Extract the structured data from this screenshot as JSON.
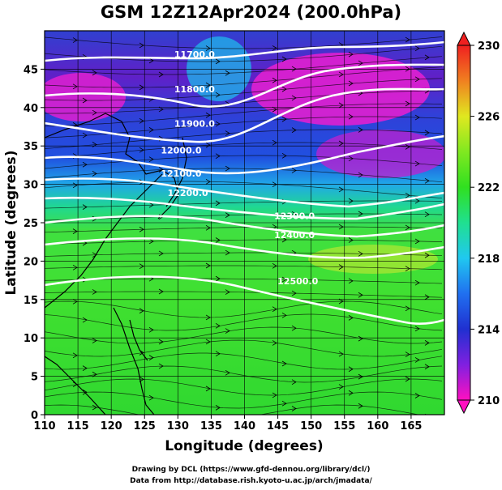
{
  "title": "GSM 12Z12Apr2024 (200.0hPa)",
  "xaxis": {
    "label": "Longitude (degrees)",
    "min": 110,
    "max": 170,
    "ticks": [
      "110",
      "115",
      "120",
      "125",
      "130",
      "135",
      "140",
      "145",
      "150",
      "155",
      "160",
      "165"
    ]
  },
  "yaxis": {
    "label": "Latitude  (degrees)",
    "min": 0,
    "max": 50,
    "ticks": [
      "0",
      "5",
      "10",
      "15",
      "20",
      "25",
      "30",
      "35",
      "40",
      "45"
    ]
  },
  "colorbar": {
    "min": 210,
    "max": 230,
    "ticks": [
      "210",
      "214",
      "218",
      "222",
      "226",
      "230"
    ]
  },
  "contours": [
    {
      "label": "11700.0",
      "lon": 132.5,
      "lat": 46.5
    },
    {
      "label": "11800.0",
      "lon": 132.5,
      "lat": 42.0
    },
    {
      "label": "11900.0",
      "lon": 132.5,
      "lat": 37.5
    },
    {
      "label": "12000.0",
      "lon": 130.5,
      "lat": 34.0
    },
    {
      "label": "12100.0",
      "lon": 130.5,
      "lat": 31.0
    },
    {
      "label": "12200.0",
      "lon": 131.5,
      "lat": 28.5
    },
    {
      "label": "12300.0",
      "lon": 147.5,
      "lat": 25.5
    },
    {
      "label": "12400.0",
      "lon": 147.5,
      "lat": 23.0
    },
    {
      "label": "12500.0",
      "lon": 148.0,
      "lat": 17.0
    }
  ],
  "credit": {
    "line1": "Drawing by DCL (https://www.gfd-dennou.org/library/dcl/)",
    "line2": "Data from http://database.rish.kyoto-u.ac.jp/arch/jmadata/"
  },
  "colors": {
    "magenta": "#e020d0",
    "blue": "#2030c8",
    "cyan": "#20c8e0",
    "green": "#30e020",
    "yellow": "#e8e020",
    "red": "#e02020"
  }
}
